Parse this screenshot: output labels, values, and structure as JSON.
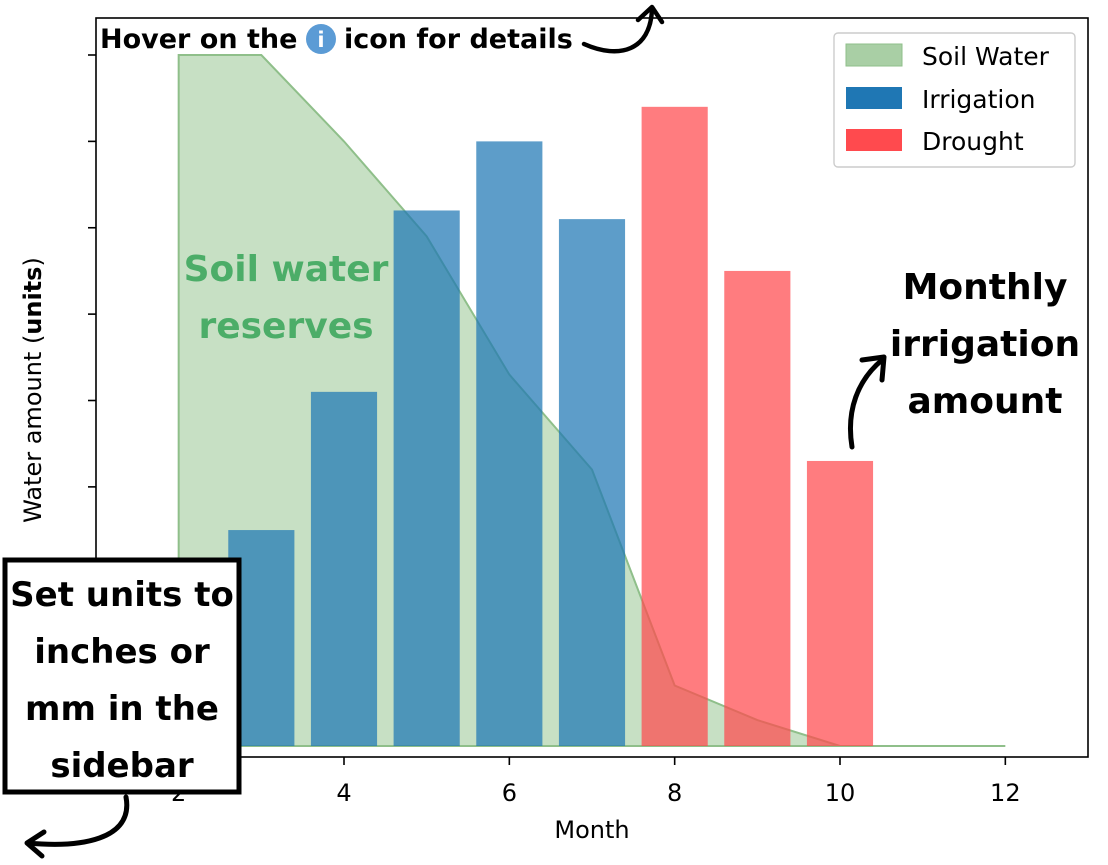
{
  "chart_data": {
    "type": "bar",
    "xlabel": "Month",
    "ylabel_prefix": "Water amount (",
    "ylabel_unit": "units",
    "ylabel_suffix": ")",
    "xlim": [
      1.0,
      13.0
    ],
    "ylim": [
      0,
      8.3
    ],
    "xticks": [
      2,
      4,
      6,
      8,
      10,
      12
    ],
    "yticks": [
      0,
      1,
      2,
      3,
      4,
      5,
      6,
      7,
      8
    ],
    "ytick_labels_visible": false,
    "area": {
      "name": "Soil Water",
      "color": "#a9cfa5",
      "x": [
        2,
        3,
        4,
        5,
        6,
        7,
        8,
        9,
        10,
        11,
        12
      ],
      "y": [
        8.0,
        8.0,
        7.0,
        5.9,
        4.3,
        3.2,
        0.7,
        0.3,
        0.0,
        0.0,
        0.0
      ]
    },
    "series": [
      {
        "name": "Irrigation",
        "color": "#1f77b4",
        "x": [
          3,
          4,
          5,
          6,
          7
        ],
        "values": [
          2.5,
          4.1,
          6.2,
          7.0,
          6.1
        ]
      },
      {
        "name": "Drought",
        "color": "#ff4a4e",
        "x": [
          8,
          9,
          10
        ],
        "values": [
          7.4,
          5.5,
          3.3
        ]
      }
    ],
    "bar_width": 0.8,
    "legend": {
      "placement": "top-right",
      "entries": [
        "Soil Water",
        "Irrigation",
        "Drought"
      ]
    },
    "grid": false
  },
  "annotations": {
    "hover_prefix": "Hover on the",
    "info_glyph": "i",
    "hover_suffix": "icon for details",
    "soil_line1": "Soil water",
    "soil_line2": "reserves",
    "monthly_line1": "Monthly",
    "monthly_line2": "irrigation",
    "monthly_line3": "amount",
    "units_line1": "Set units to",
    "units_line2": "inches or",
    "units_line3": "mm in the",
    "units_line4": "sidebar",
    "soil_color": "#4cad68",
    "info_color": "#5b9bd5"
  }
}
